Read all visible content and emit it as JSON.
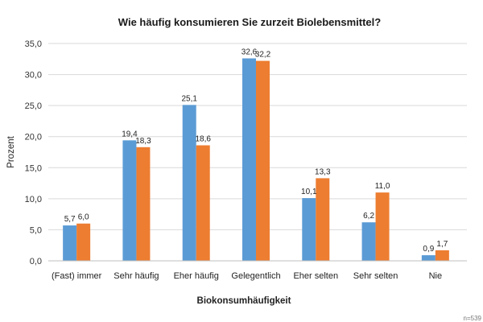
{
  "chart_data": {
    "type": "bar",
    "title": "Wie  häufig konsumieren Sie zurzeit Biolebensmittel?",
    "xlabel": "Biokonsumhäufigkeit",
    "ylabel": "Prozent",
    "ylim": [
      0,
      35
    ],
    "yticks": [
      "0,0",
      "5,0",
      "10,0",
      "15,0",
      "20,0",
      "25,0",
      "30,0",
      "35,0"
    ],
    "grid": true,
    "legend": "none",
    "categories": [
      "(Fast) immer",
      "Sehr häufig",
      "Eher häufig",
      "Gelegentlich",
      "Eher selten",
      "Sehr selten",
      "Nie"
    ],
    "series": [
      {
        "color": "#5b9bd5",
        "values": [
          5.7,
          19.4,
          25.1,
          32.6,
          10.1,
          6.2,
          0.9
        ],
        "labels": [
          "5,7",
          "19,4",
          "25,1",
          "32,6",
          "10,1",
          "6,2",
          "0,9"
        ]
      },
      {
        "color": "#ed7d31",
        "values": [
          6.0,
          18.3,
          18.6,
          32.2,
          13.3,
          11.0,
          1.7
        ],
        "labels": [
          "6,0",
          "18,3",
          "18,6",
          "32,2",
          "13,3",
          "11,0",
          "1,7"
        ]
      }
    ],
    "note": "n=539"
  }
}
